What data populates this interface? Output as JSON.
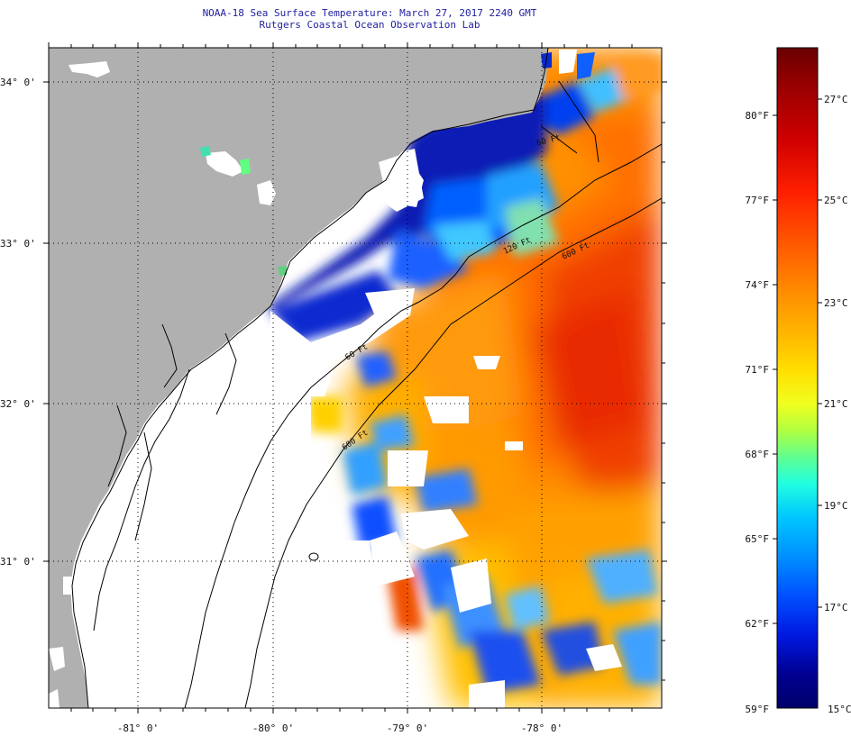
{
  "header": {
    "title": "NOAA-18 Sea Surface Temperature:  March 27, 2017 2240 GMT",
    "subtitle": "Rutgers Coastal Ocean Observation Lab"
  },
  "map": {
    "latitude_labels": [
      "34° 0'",
      "33° 0'",
      "32° 0'",
      "31° 0'"
    ],
    "longitude_labels": [
      "-81° 0'",
      "-80° 0'",
      "-79° 0'",
      "-78° 0'"
    ],
    "contour_labels": [
      "120 Ft",
      "600 Ft",
      "60 Ft",
      "600 Ft",
      "60 Ft"
    ]
  },
  "legend": {
    "fahrenheit_labels": [
      "80°F",
      "77°F",
      "74°F",
      "71°F",
      "68°F",
      "65°F",
      "62°F",
      "59°F"
    ],
    "celsius_labels": [
      "27°C",
      "25°C",
      "23°C",
      "21°C",
      "19°C",
      "17°C",
      "15°C"
    ],
    "colors": [
      "#6a0000",
      "#9a0000",
      "#d00000",
      "#ff2000",
      "#ff5a00",
      "#ff8c00",
      "#ffb400",
      "#ffe000",
      "#f0ff20",
      "#b0ff40",
      "#60ff90",
      "#20ffe0",
      "#00c8ff",
      "#0090ff",
      "#0050ff",
      "#0018e0",
      "#000090",
      "#00006a"
    ]
  },
  "colors": {
    "land": "#b0b0b0",
    "cloud": "#ffffff",
    "title": "#1e1ea0"
  }
}
